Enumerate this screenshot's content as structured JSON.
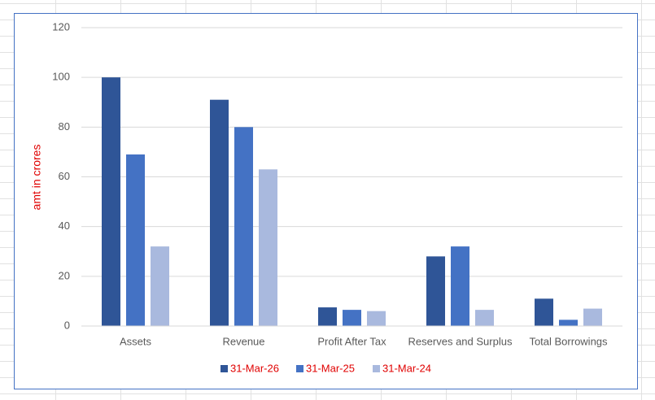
{
  "chart_data": {
    "type": "bar",
    "y_label": "amt in crores",
    "categories": [
      "Assets",
      "Revenue",
      "Profit After Tax",
      "Reserves and Surplus",
      "Total Borrowings"
    ],
    "series": [
      {
        "name": "31-Mar-26",
        "color": "#2f5597",
        "values": [
          100,
          91,
          7.5,
          28,
          11
        ]
      },
      {
        "name": "31-Mar-25",
        "color": "#4472c4",
        "values": [
          69,
          80,
          6.5,
          32,
          2.5
        ]
      },
      {
        "name": "31-Mar-24",
        "color": "#a9b9de",
        "values": [
          32,
          63,
          6,
          6.5,
          7
        ]
      }
    ],
    "ylim": [
      0,
      120
    ],
    "yticks": [
      0,
      20,
      40,
      60,
      80,
      100,
      120
    ],
    "grid": true,
    "legend": "bottom"
  }
}
